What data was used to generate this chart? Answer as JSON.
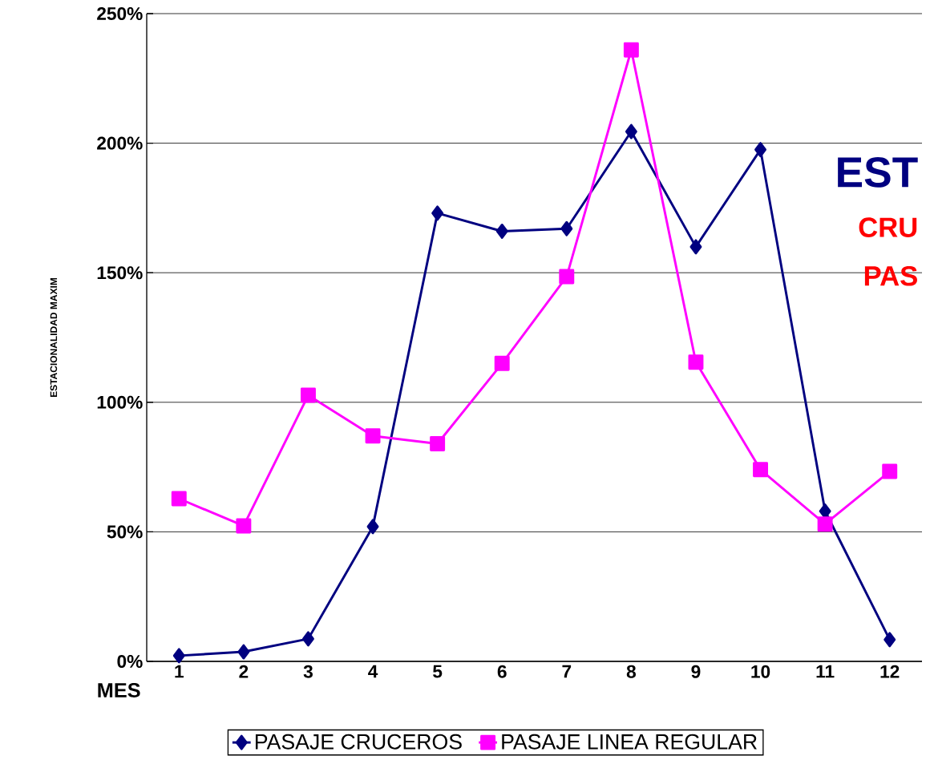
{
  "chart_data": {
    "type": "line",
    "xlabel": "MES",
    "ylabel": "ESTACIONALIDAD MAXIM",
    "categories": [
      "1",
      "2",
      "3",
      "4",
      "5",
      "6",
      "7",
      "8",
      "9",
      "10",
      "11",
      "12"
    ],
    "series": [
      {
        "name": "PASAJE CRUCEROS",
        "color": "#000080",
        "marker": "diamond",
        "values": [
          2.2,
          3.7,
          8.7,
          52,
          173,
          166,
          167,
          204.5,
          160,
          197.5,
          58,
          8.4
        ]
      },
      {
        "name": "PASAJE LINEA REGULAR",
        "color": "#ff00ff",
        "marker": "square",
        "values": [
          62.8,
          52.3,
          102.7,
          87,
          84,
          115,
          148.5,
          236,
          115.5,
          74,
          53,
          73.3
        ]
      }
    ],
    "ylim": [
      0,
      250
    ],
    "yticks": [
      {
        "value": 0,
        "label": "0%"
      },
      {
        "value": 50,
        "label": "50%"
      },
      {
        "value": 100,
        "label": "100%"
      },
      {
        "value": 150,
        "label": "150%"
      },
      {
        "value": 200,
        "label": "200%"
      },
      {
        "value": 250,
        "label": "250%"
      }
    ],
    "grid": "y",
    "legend": "bottom",
    "line_style": "solid",
    "annotations": [
      "EST",
      "CRU",
      "PAS"
    ]
  }
}
